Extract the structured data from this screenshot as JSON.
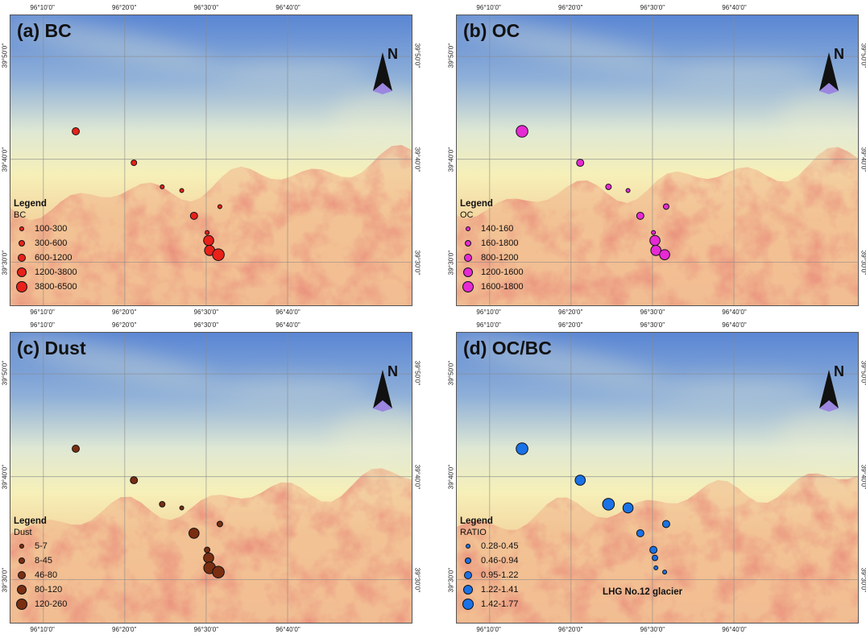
{
  "colors": {
    "relief_high": "#d05040",
    "relief_mid": "#f6f0b8",
    "relief_low": "#4a7fd0",
    "north_arrow_light": "#9b86e0",
    "north_arrow_dark": "#111111"
  },
  "coords": {
    "top_lon": [
      "96°10'0\"",
      "96°20'0\"",
      "96°30'0\"",
      "96°40'0\""
    ],
    "bottom_lon": [
      "96°10'0\"",
      "96°20'0\"",
      "96°30'0\"",
      "96°40'0\""
    ],
    "lat": [
      "39°50'0\"",
      "39°40'0\"",
      "39°30'0\""
    ]
  },
  "north_label": "N",
  "legend_title": "Legend",
  "stations": [
    {
      "lon": 96.233,
      "lat": 39.712
    },
    {
      "lon": 96.352,
      "lat": 39.661
    },
    {
      "lon": 96.41,
      "lat": 39.622
    },
    {
      "lon": 96.45,
      "lat": 39.616
    },
    {
      "lon": 96.528,
      "lat": 39.59
    },
    {
      "lon": 96.475,
      "lat": 39.575
    },
    {
      "lon": 96.502,
      "lat": 39.548
    },
    {
      "lon": 96.505,
      "lat": 39.535
    },
    {
      "lon": 96.507,
      "lat": 39.519
    },
    {
      "lon": 96.525,
      "lat": 39.512
    }
  ],
  "panels": [
    {
      "id": "bc",
      "title": "(a) BC",
      "field": "BC",
      "color": "#e8211a",
      "classes": [
        "100-300",
        "300-600",
        "600-1200",
        "1200-3800",
        "3800-6500"
      ],
      "station_class": [
        2,
        1,
        0,
        0,
        0,
        2,
        0,
        3,
        3,
        4
      ]
    },
    {
      "id": "oc",
      "title": "(b) OC",
      "field": "OC",
      "color": "#e62ad4",
      "classes": [
        "140-160",
        "160-1800",
        "800-1200",
        "1200-1600",
        "1600-1800"
      ],
      "station_class": [
        4,
        2,
        1,
        0,
        1,
        2,
        0,
        3,
        3,
        3
      ]
    },
    {
      "id": "dust",
      "title": "(c) Dust",
      "field": "Dust",
      "color": "#7a2e12",
      "classes": [
        "5-7",
        "8-45",
        "46-80",
        "80-120",
        "120-260"
      ],
      "station_class": [
        2,
        2,
        1,
        0,
        1,
        3,
        1,
        3,
        4,
        4
      ]
    },
    {
      "id": "ratio",
      "title": "(d) OC/BC",
      "field": "RATIO",
      "color": "#1a72e6",
      "classes": [
        "0.28-0.45",
        "0.46-0.94",
        "0.95-1.22",
        "1.22-1.41",
        "1.42-1.77"
      ],
      "station_class": [
        4,
        3,
        4,
        3,
        2,
        2,
        2,
        1,
        0,
        0
      ],
      "annotation": "LHG No.12 glacier"
    }
  ]
}
